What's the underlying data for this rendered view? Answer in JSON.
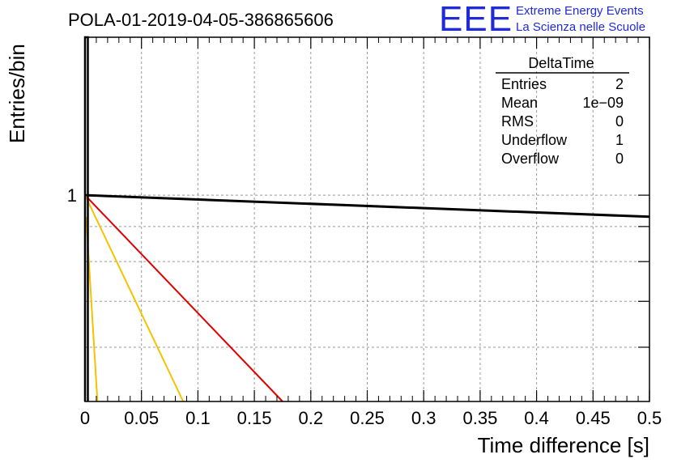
{
  "chart_data": {
    "type": "histogram",
    "title": "POLA-01-2019-04-05-386865606",
    "xlabel": "Time difference [s]",
    "ylabel": "Entries/bin",
    "xlim": [
      0,
      0.5
    ],
    "ylim": [
      0.5,
      1.7
    ],
    "ylog": true,
    "grid": true,
    "x_ticks": [
      0,
      0.05,
      0.1,
      0.15,
      0.2,
      0.25,
      0.3,
      0.35,
      0.4,
      0.45,
      0.5
    ],
    "x_tick_labels": [
      "0",
      "0.05",
      "0.1",
      "0.15",
      "0.2",
      "0.25",
      "0.3",
      "0.35",
      "0.4",
      "0.45",
      "0.5"
    ],
    "y_tick_labels": [
      {
        "value": 1,
        "label": "1"
      }
    ],
    "histogram": {
      "bin_edges": [
        0.0,
        0.0025
      ],
      "content": [
        2
      ]
    },
    "series": [
      {
        "color": "#000000",
        "points": [
          [
            0,
            1.0
          ],
          [
            0.5,
            0.93
          ]
        ]
      },
      {
        "color": "#e00000",
        "points": [
          [
            0,
            1.0
          ],
          [
            0.175,
            0.5
          ]
        ]
      },
      {
        "color": "#f5c200",
        "points": [
          [
            0,
            1.0
          ],
          [
            0.087,
            0.5
          ]
        ]
      },
      {
        "color": "#f5c200",
        "points": [
          [
            0.001,
            0.93
          ],
          [
            0.011,
            0.5
          ]
        ]
      }
    ],
    "stats_box": {
      "title": "DeltaTime",
      "rows": [
        {
          "label": "Entries",
          "value": "2"
        },
        {
          "label": "Mean",
          "value": "1e−09"
        },
        {
          "label": "RMS",
          "value": "0"
        },
        {
          "label": "Underflow",
          "value": "1"
        },
        {
          "label": "Overflow",
          "value": "0"
        }
      ]
    }
  },
  "logo": {
    "mark": "EEE",
    "line1": "Extreme Energy Events",
    "line2": "La Scienza nelle Scuole",
    "color": "#1f2bd6"
  }
}
